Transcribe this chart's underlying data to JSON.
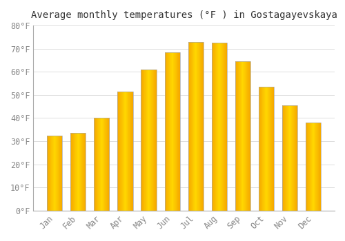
{
  "title": "Average monthly temperatures (°F ) in Gostagayevskaya",
  "months": [
    "Jan",
    "Feb",
    "Mar",
    "Apr",
    "May",
    "Jun",
    "Jul",
    "Aug",
    "Sep",
    "Oct",
    "Nov",
    "Dec"
  ],
  "values": [
    32.5,
    33.5,
    40.0,
    51.5,
    61.0,
    68.5,
    73.0,
    72.5,
    64.5,
    53.5,
    45.5,
    38.0
  ],
  "bar_color_center": "#FFD700",
  "bar_color_edge": "#F5A800",
  "bar_border_color": "#AAAAAA",
  "background_color": "#FFFFFF",
  "grid_color": "#DDDDDD",
  "ylim": [
    0,
    80
  ],
  "yticks": [
    0,
    10,
    20,
    30,
    40,
    50,
    60,
    70,
    80
  ],
  "ytick_labels": [
    "0°F",
    "10°F",
    "20°F",
    "30°F",
    "40°F",
    "50°F",
    "60°F",
    "70°F",
    "80°F"
  ],
  "title_fontsize": 10,
  "tick_fontsize": 8.5,
  "font_family": "monospace",
  "tick_color": "#888888",
  "title_color": "#333333"
}
